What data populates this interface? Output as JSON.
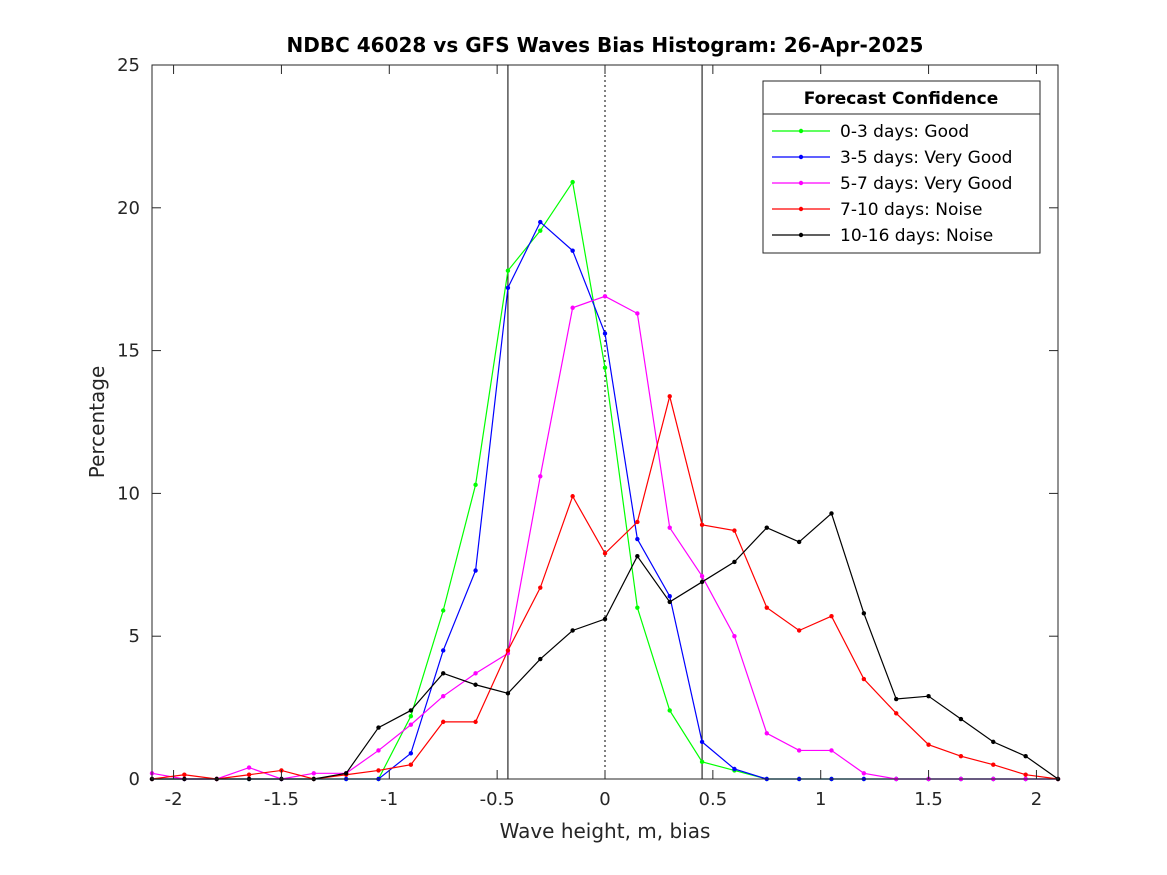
{
  "chart_data": {
    "type": "line",
    "title": "NDBC 46028 vs GFS Waves Bias Histogram: 26-Apr-2025",
    "xlabel": "Wave height, m, bias",
    "ylabel": "Percentage",
    "xlim": [
      -2.1,
      2.1
    ],
    "ylim": [
      0,
      25
    ],
    "xticks": [
      -2,
      -1.5,
      -1,
      -0.5,
      0,
      0.5,
      1,
      1.5,
      2
    ],
    "xtick_labels": [
      "-2",
      "-1.5",
      "-1",
      "-0.5",
      "0",
      "0.5",
      "1",
      "1.5",
      "2"
    ],
    "yticks": [
      0,
      5,
      10,
      15,
      20,
      25
    ],
    "ytick_labels": [
      "0",
      "5",
      "10",
      "15",
      "20",
      "25"
    ],
    "vertical_lines": [
      {
        "x": -0.45,
        "style": "solid"
      },
      {
        "x": 0,
        "style": "dotted"
      },
      {
        "x": 0.45,
        "style": "solid"
      }
    ],
    "legend": {
      "title": "Forecast Confidence",
      "position": "top-right"
    },
    "x": [
      -2.1,
      -1.95,
      -1.8,
      -1.65,
      -1.5,
      -1.35,
      -1.2,
      -1.05,
      -0.9,
      -0.75,
      -0.6,
      -0.45,
      -0.3,
      -0.15,
      0,
      0.15,
      0.3,
      0.45,
      0.6,
      0.75,
      0.9,
      1.05,
      1.2,
      1.35,
      1.5,
      1.65,
      1.8,
      1.95,
      2.1
    ],
    "series": [
      {
        "name": "0-3 days: Good",
        "color": "#00ff00",
        "values": [
          0,
          0,
          0,
          0,
          0,
          0,
          0,
          0,
          2.2,
          5.9,
          10.3,
          17.8,
          19.2,
          20.9,
          14.4,
          6.0,
          2.4,
          0.6,
          0.3,
          0,
          0,
          0,
          0,
          0,
          0,
          0,
          0,
          0,
          0
        ]
      },
      {
        "name": "3-5 days: Very Good",
        "color": "#0000ff",
        "values": [
          0,
          0,
          0,
          0,
          0,
          0,
          0,
          0,
          0.9,
          4.5,
          7.3,
          17.2,
          19.5,
          18.5,
          15.6,
          8.4,
          6.4,
          1.3,
          0.35,
          0,
          0,
          0,
          0,
          0,
          0,
          0,
          0,
          0,
          0
        ]
      },
      {
        "name": "5-7 days: Very Good",
        "color": "#ff00ff",
        "values": [
          0.2,
          0,
          0,
          0.4,
          0,
          0.2,
          0.2,
          1.0,
          1.9,
          2.9,
          3.7,
          4.4,
          10.6,
          16.5,
          16.9,
          16.3,
          8.8,
          7.1,
          5.0,
          1.6,
          1.0,
          1.0,
          0.2,
          0,
          0,
          0,
          0,
          0,
          0
        ]
      },
      {
        "name": "7-10 days: Noise",
        "color": "#ff0000",
        "values": [
          0,
          0.15,
          0,
          0.15,
          0.3,
          0,
          0.15,
          0.3,
          0.5,
          2.0,
          2.0,
          4.5,
          6.7,
          9.9,
          7.9,
          9.0,
          13.4,
          8.9,
          8.7,
          6.0,
          5.2,
          5.7,
          3.5,
          2.3,
          1.2,
          0.8,
          0.5,
          0.15,
          0
        ]
      },
      {
        "name": "10-16 days: Noise",
        "color": "#000000",
        "values": [
          0,
          0,
          0,
          0,
          0,
          0,
          0.2,
          1.8,
          2.4,
          3.7,
          3.3,
          3.0,
          4.2,
          5.2,
          5.6,
          7.8,
          6.2,
          6.9,
          7.6,
          8.8,
          8.3,
          9.3,
          5.8,
          2.8,
          2.9,
          2.1,
          1.3,
          0.8,
          0
        ]
      }
    ]
  }
}
